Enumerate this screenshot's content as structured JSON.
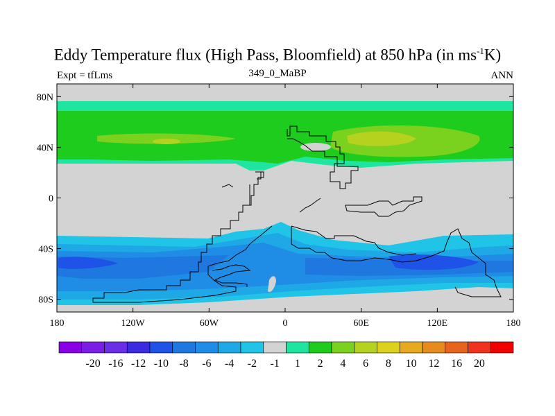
{
  "title": {
    "main": "Eddy Temperature flux (High Pass, Bloomfield) at 850 hPa (in ms",
    "sup": "-1",
    "end": "K)"
  },
  "experiment_label": "Expt = tfLms",
  "run_id": "349_0_MaBP",
  "season": "ANN",
  "map": {
    "projection": "cylindrical-equidistant",
    "lon_range": [
      -180,
      180
    ],
    "lat_range": [
      -90,
      90
    ],
    "land_color": "#d3d3d3"
  },
  "axes": {
    "x_ticks": [
      {
        "value": -180,
        "label": "180"
      },
      {
        "value": -120,
        "label": "120W"
      },
      {
        "value": -60,
        "label": "60W"
      },
      {
        "value": 0,
        "label": "0"
      },
      {
        "value": 60,
        "label": "60E"
      },
      {
        "value": 120,
        "label": "120E"
      },
      {
        "value": 180,
        "label": "180"
      }
    ],
    "y_ticks": [
      {
        "value": 80,
        "label": "80N"
      },
      {
        "value": 40,
        "label": "40N"
      },
      {
        "value": 0,
        "label": "0"
      },
      {
        "value": -40,
        "label": "40S"
      },
      {
        "value": -80,
        "label": "80S"
      }
    ]
  },
  "colorbar": {
    "colors": [
      "#8a00e6",
      "#7a1ee6",
      "#6a2ee6",
      "#3a2ae0",
      "#1f52e6",
      "#1f78e0",
      "#1f8ce6",
      "#1fa8e6",
      "#1fc4e6",
      "#d3d3d3",
      "#1ee6a0",
      "#1ecc1e",
      "#7ad21e",
      "#b4d21e",
      "#dcd21e",
      "#e6aa1e",
      "#e68c1e",
      "#e6641e",
      "#f0321e",
      "#f00000"
    ],
    "labels": [
      "-20",
      "-16",
      "-12",
      "-10",
      "-8",
      "-6",
      "-4",
      "-2",
      "-1",
      "1",
      "2",
      "4",
      "6",
      "8",
      "10",
      "12",
      "16",
      "20"
    ]
  },
  "chart_data": {
    "type": "heatmap",
    "title": "Eddy Temperature flux (High Pass, Bloomfield) at 850 hPa (in ms-1K)",
    "units": "ms-1K",
    "level": "850 hPa",
    "bands": [
      {
        "lat_range": [
          22,
          76
        ],
        "lon_range": [
          -180,
          180
        ],
        "value": 3
      },
      {
        "lat_range": [
          32,
          62
        ],
        "lon_range": [
          -180,
          180
        ],
        "value": 4
      },
      {
        "lat_range": [
          33,
          47
        ],
        "lon_range": [
          40,
          140
        ],
        "value": 6
      },
      {
        "lat_range": [
          36,
          44
        ],
        "lon_range": [
          50,
          90
        ],
        "value": 7
      },
      {
        "lat_range": [
          -90,
          -30
        ],
        "lon_range": [
          -180,
          180
        ],
        "value": -2
      },
      {
        "lat_range": [
          -75,
          -40
        ],
        "lon_range": [
          -180,
          180
        ],
        "value": -4
      },
      {
        "lat_range": [
          -66,
          -46
        ],
        "lon_range": [
          -170,
          170
        ],
        "value": -6
      },
      {
        "lat_range": [
          -60,
          -50
        ],
        "lon_range": [
          40,
          150
        ],
        "value": -8
      },
      {
        "lat_range": [
          -58,
          -52
        ],
        "lon_range": [
          80,
          120
        ],
        "value": -10
      }
    ]
  }
}
